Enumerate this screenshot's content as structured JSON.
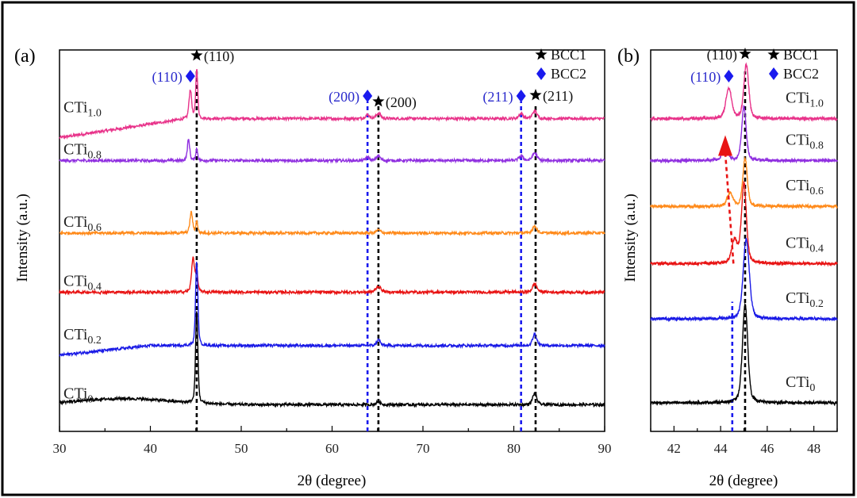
{
  "chart_data": [
    {
      "type": "line",
      "panel_label": "(a)",
      "xlabel": "2θ (degree)",
      "ylabel": "Intensity (a.u.)",
      "xlim": [
        30,
        90
      ],
      "ylim": [
        0,
        100
      ],
      "xticks": [
        30,
        40,
        50,
        60,
        70,
        80,
        90
      ],
      "legend": {
        "placement": "top-right",
        "entries": [
          {
            "symbol": "star",
            "label": "BCC1",
            "color": "#000000"
          },
          {
            "symbol": "diamond",
            "label": "BCC2",
            "color": "#1a1aee"
          }
        ]
      },
      "reference_lines": [
        {
          "x": 45.1,
          "phase": "BCC1",
          "color": "#000000"
        },
        {
          "x": 65.1,
          "phase": "BCC1",
          "color": "#000000"
        },
        {
          "x": 82.4,
          "phase": "BCC1",
          "color": "#000000"
        },
        {
          "x": 63.9,
          "phase": "BCC2",
          "color": "#1a1aee"
        },
        {
          "x": 80.8,
          "phase": "BCC2",
          "color": "#1a1aee"
        }
      ],
      "annotations": [
        {
          "text": "(110)",
          "x": 45.1,
          "phase": "BCC1"
        },
        {
          "text": "(110)",
          "x": 44.4,
          "phase": "BCC2"
        },
        {
          "text": "(200)",
          "x": 65.1,
          "phase": "BCC1"
        },
        {
          "text": "(200)",
          "x": 63.9,
          "phase": "BCC2"
        },
        {
          "text": "(211)",
          "x": 82.4,
          "phase": "BCC1"
        },
        {
          "text": "(211)",
          "x": 80.8,
          "phase": "BCC2"
        }
      ],
      "series": [
        {
          "name": "CTi",
          "sub": "1.0",
          "color": "#e8338a",
          "baseline": 82,
          "baseline_start": 77,
          "slope_end": 44,
          "peaks": [
            [
              44.4,
              7.5,
              0.18
            ],
            [
              45.1,
              13,
              0.14
            ],
            [
              63.9,
              1.0,
              0.3
            ],
            [
              65.1,
              1.4,
              0.3
            ],
            [
              80.8,
              1.3,
              0.3
            ],
            [
              82.3,
              2.0,
              0.3
            ]
          ]
        },
        {
          "name": "CTi",
          "sub": "0.8",
          "color": "#9030e0",
          "baseline": 71,
          "peaks": [
            [
              44.2,
              5.5,
              0.16
            ],
            [
              45.1,
              3,
              0.14
            ],
            [
              63.9,
              0.9,
              0.25
            ],
            [
              65.1,
              1.3,
              0.25
            ],
            [
              80.8,
              1.2,
              0.3
            ],
            [
              82.3,
              2.0,
              0.3
            ]
          ]
        },
        {
          "name": "CTi",
          "sub": "0.6",
          "color": "#ff8a1a",
          "baseline": 52,
          "peaks": [
            [
              44.5,
              5.5,
              0.18
            ],
            [
              45.1,
              3,
              0.14
            ],
            [
              65.1,
              0.8,
              0.3
            ],
            [
              82.3,
              1.8,
              0.3
            ]
          ]
        },
        {
          "name": "CTi",
          "sub": "0.4",
          "color": "#e81414",
          "baseline": 36.5,
          "peaks": [
            [
              44.7,
              9,
              0.2
            ],
            [
              45.1,
              5,
              0.15
            ],
            [
              65.1,
              1.5,
              0.35
            ],
            [
              82.3,
              2.2,
              0.3
            ]
          ]
        },
        {
          "name": "CTi",
          "sub": "0.2",
          "color": "#1a1ae6",
          "baseline": 22.5,
          "baseline_start": 20,
          "slope_end": 40,
          "peaks": [
            [
              45.1,
              22,
              0.16
            ],
            [
              65.1,
              1.5,
              0.25
            ],
            [
              82.3,
              3.0,
              0.28
            ]
          ]
        },
        {
          "name": "CTi",
          "sub": "0",
          "color": "#000000",
          "baseline": 7,
          "hump": [
            37,
            1.6,
            5
          ],
          "peaks": [
            [
              45.1,
              24,
              0.16
            ],
            [
              65.1,
              0.7,
              0.3
            ],
            [
              82.3,
              3.0,
              0.28
            ]
          ]
        }
      ]
    },
    {
      "type": "line",
      "panel_label": "(b)",
      "xlabel": "2θ (degree)",
      "ylabel": "Intensity (a.u.)",
      "xlim": [
        41,
        49
      ],
      "ylim": [
        0,
        100
      ],
      "xticks": [
        42,
        44,
        46,
        48
      ],
      "legend": {
        "placement": "top-right",
        "entries": [
          {
            "symbol": "star",
            "label": "BCC1",
            "color": "#000000"
          },
          {
            "symbol": "diamond",
            "label": "BCC2",
            "color": "#1a1aee"
          }
        ]
      },
      "reference_lines": [
        {
          "x": 45.05,
          "phase": "BCC1",
          "color": "#000000"
        },
        {
          "x": 44.5,
          "phase": "BCC2",
          "color": "#1a1aee"
        }
      ],
      "shift_arrow": {
        "from": [
          44.55,
          44
        ],
        "to": [
          44.2,
          76
        ],
        "color": "#e81414"
      },
      "annotations": [
        {
          "text": "(110)",
          "x": 45.05,
          "phase": "BCC1"
        },
        {
          "text": "(110)",
          "x": 44.35,
          "phase": "BCC2"
        }
      ],
      "series": [
        {
          "name": "CTi",
          "sub": "1.0",
          "color": "#e8338a",
          "baseline": 82,
          "peaks": [
            [
              44.35,
              8,
              0.15
            ],
            [
              45.1,
              14,
              0.13
            ]
          ]
        },
        {
          "name": "CTi",
          "sub": "0.8",
          "color": "#9030e0",
          "baseline": 71,
          "peaks": [
            [
              44.2,
              5,
              0.13
            ],
            [
              45.0,
              14,
              0.12
            ]
          ]
        },
        {
          "name": "CTi",
          "sub": "0.6",
          "color": "#ff8a1a",
          "baseline": 59,
          "peaks": [
            [
              44.4,
              3.5,
              0.15
            ],
            [
              45.05,
              12.5,
              0.12
            ]
          ]
        },
        {
          "name": "CTi",
          "sub": "0.4",
          "color": "#e81414",
          "baseline": 44,
          "peaks": [
            [
              44.6,
              6,
              0.15
            ],
            [
              45.0,
              21,
              0.13
            ]
          ]
        },
        {
          "name": "CTi",
          "sub": "0.2",
          "color": "#1a1ae6",
          "baseline": 29.5,
          "peaks": [
            [
              45.1,
              21,
              0.16
            ]
          ]
        },
        {
          "name": "CTi",
          "sub": "0",
          "color": "#000000",
          "baseline": 7.5,
          "peaks": [
            [
              45.05,
              26,
              0.14
            ]
          ]
        }
      ]
    }
  ]
}
